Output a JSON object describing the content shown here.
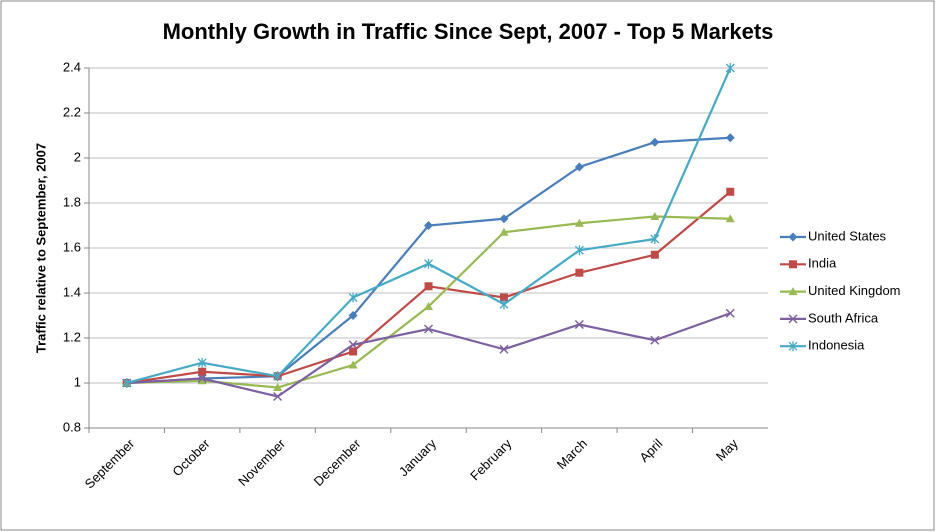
{
  "chart_data": {
    "type": "line",
    "title": "Monthly Growth in Traffic Since Sept, 2007 - Top 5 Markets",
    "y_label": "Traffic relative to September, 2007",
    "categories": [
      "September",
      "October",
      "November",
      "December",
      "January",
      "February",
      "March",
      "April",
      "May"
    ],
    "series": [
      {
        "name": "United States",
        "color": "#4a7ebb",
        "marker": "diamond",
        "values": [
          1.0,
          1.02,
          1.03,
          1.3,
          1.7,
          1.73,
          1.96,
          2.07,
          2.09
        ]
      },
      {
        "name": "India",
        "color": "#be4b48",
        "marker": "square",
        "values": [
          1.0,
          1.05,
          1.03,
          1.14,
          1.43,
          1.38,
          1.49,
          1.57,
          1.85
        ]
      },
      {
        "name": "United Kingdom",
        "color": "#98b954",
        "marker": "triangle",
        "values": [
          1.0,
          1.01,
          0.98,
          1.08,
          1.34,
          1.67,
          1.71,
          1.74,
          1.73
        ]
      },
      {
        "name": "South Africa",
        "color": "#7d60a0",
        "marker": "x",
        "values": [
          1.0,
          1.02,
          0.94,
          1.17,
          1.24,
          1.15,
          1.26,
          1.19,
          1.31
        ]
      },
      {
        "name": "Indonesia",
        "color": "#46aac5",
        "marker": "star",
        "values": [
          1.0,
          1.09,
          1.03,
          1.38,
          1.53,
          1.35,
          1.59,
          1.64,
          2.4
        ]
      }
    ],
    "ylim": [
      0.8,
      2.4
    ],
    "yticks": [
      0.8,
      1,
      1.2,
      1.4,
      1.6,
      1.8,
      2,
      2.2,
      2.4
    ],
    "grid": true,
    "legend": "right"
  }
}
